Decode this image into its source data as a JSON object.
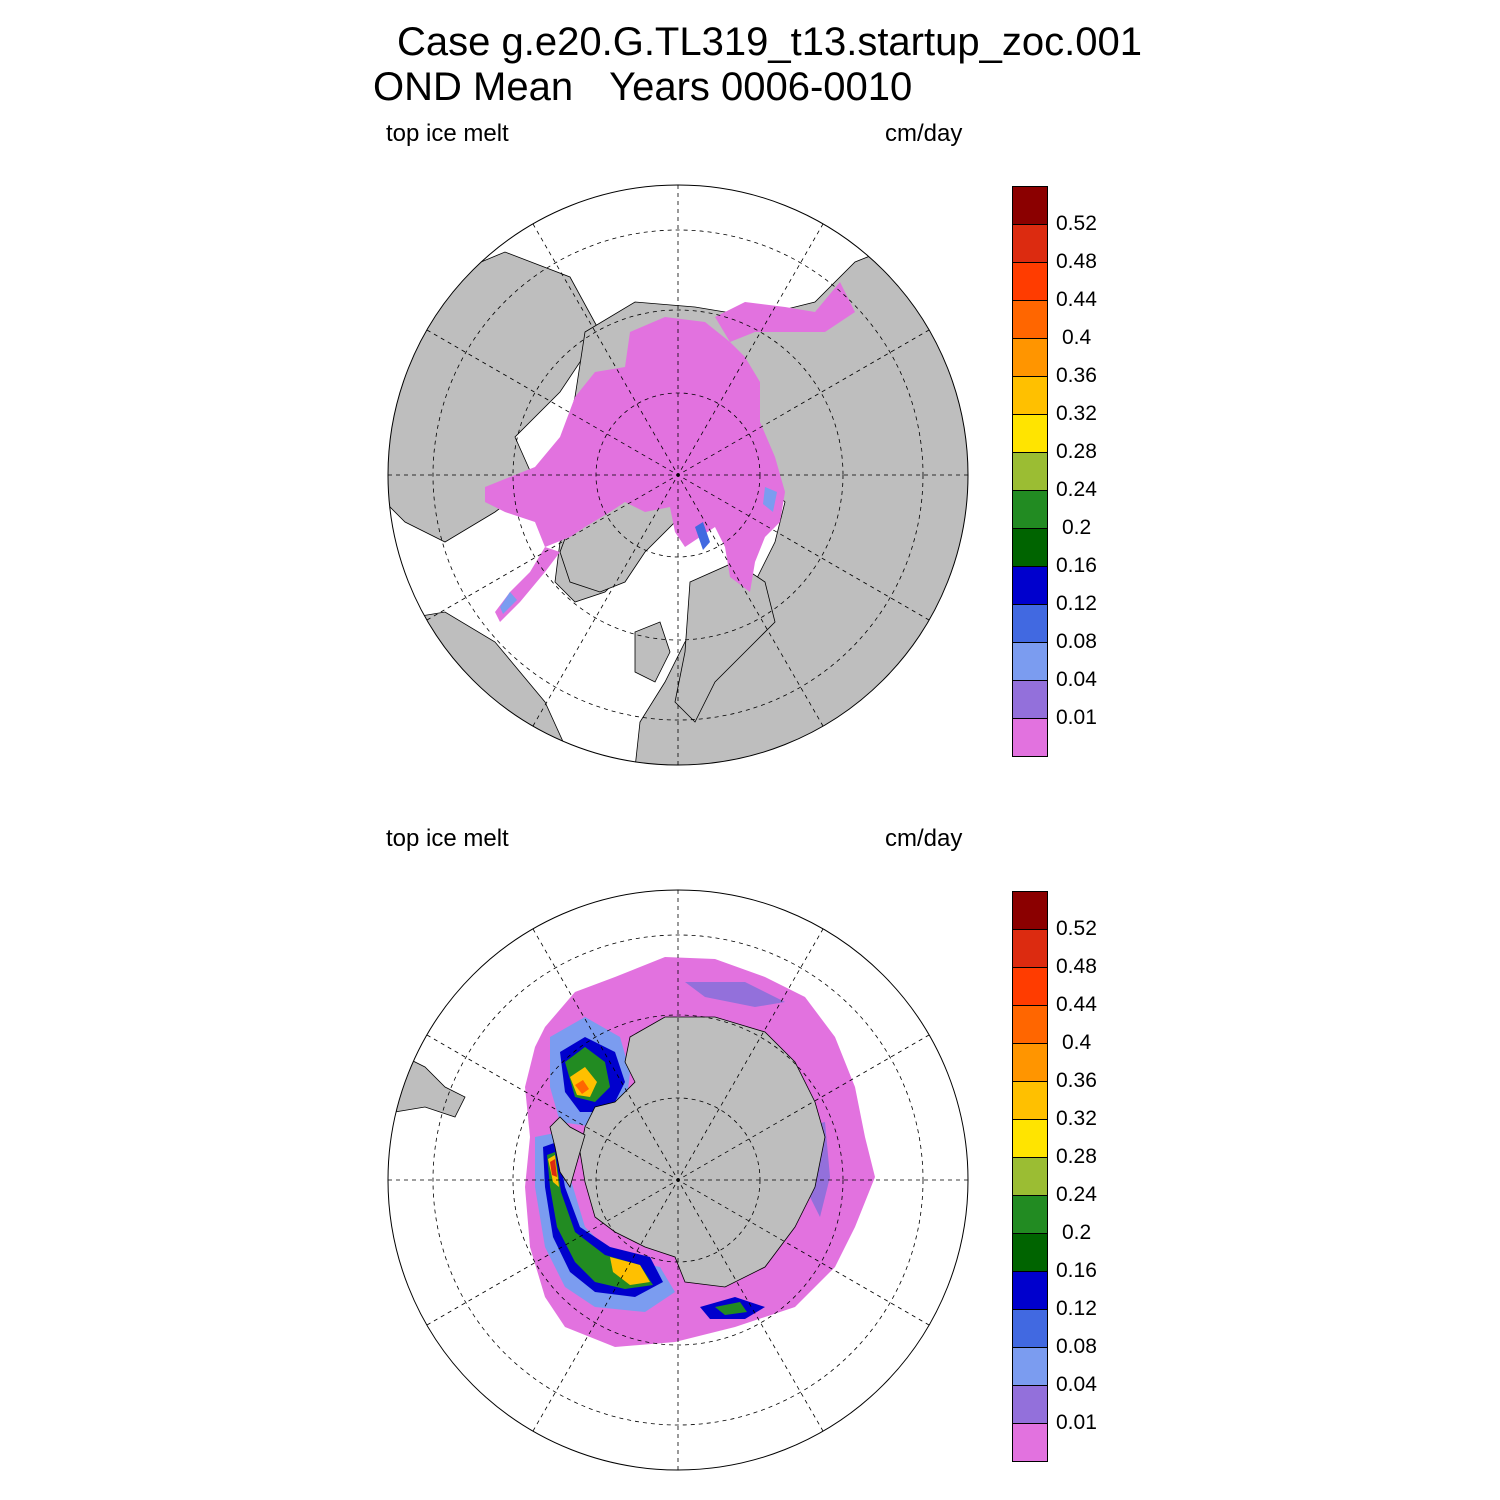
{
  "title": {
    "line1": "Case g.e20.G.TL319_t13.startup_zoc.001",
    "line2_left": "OND Mean",
    "line2_right": "Years 0006-0010"
  },
  "panels": [
    {
      "hemisphere": "north",
      "left_label": "top ice melt",
      "right_label": "cm/day"
    },
    {
      "hemisphere": "south",
      "left_label": "top ice melt",
      "right_label": "cm/day"
    }
  ],
  "colorbar": {
    "labels": [
      "0.52",
      "0.48",
      "0.44",
      "0.4",
      "0.36",
      "0.32",
      "0.28",
      "0.24",
      "0.2",
      "0.16",
      "0.12",
      "0.08",
      "0.04",
      "0.01"
    ],
    "colors": [
      "#8b0000",
      "#dc2b10",
      "#ff3c00",
      "#ff6600",
      "#ff9500",
      "#ffc000",
      "#ffe400",
      "#9bbd33",
      "#228b22",
      "#006400",
      "#0000cd",
      "#4169e1",
      "#7b9cf0",
      "#9370db",
      "#e272df"
    ]
  },
  "chart_data": {
    "type": "heatmap",
    "title": "Case g.e20.G.TL319_t13.startup_zoc.001 OND Mean Years 0006-0010",
    "variable": "top ice melt",
    "units": "cm/day",
    "contour_levels": [
      0.01,
      0.04,
      0.08,
      0.12,
      0.16,
      0.2,
      0.24,
      0.28,
      0.32,
      0.36,
      0.4,
      0.44,
      0.48,
      0.52
    ],
    "maps": [
      "Northern Hemisphere polar stereographic",
      "Southern Hemisphere polar stereographic"
    ]
  }
}
